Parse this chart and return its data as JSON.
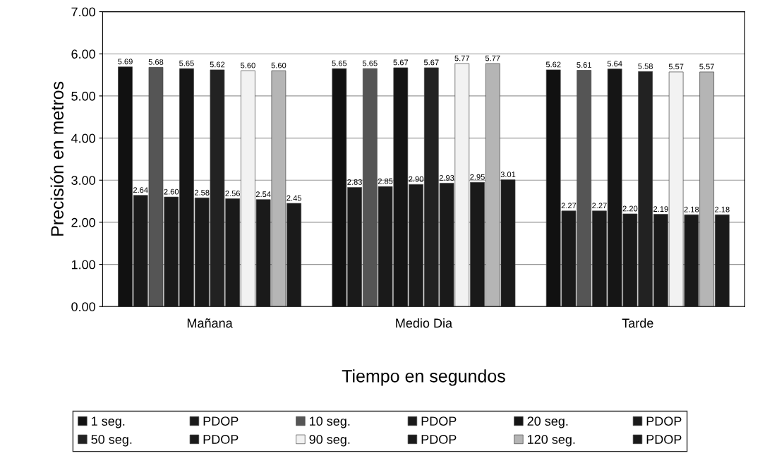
{
  "chart_data": {
    "type": "bar",
    "xlabel": "Tiempo en segundos",
    "ylabel": "Precisión en metros",
    "categories": [
      "Mañana",
      "Medio Dia",
      "Tarde"
    ],
    "ylim": [
      0,
      7
    ],
    "yticks": [
      {
        "value": 0,
        "label": "0.00"
      },
      {
        "value": 1,
        "label": "1.00"
      },
      {
        "value": 2,
        "label": "2.00"
      },
      {
        "value": 3,
        "label": "3.00"
      },
      {
        "value": 4,
        "label": "4.00"
      },
      {
        "value": 5,
        "label": "5.00"
      },
      {
        "value": 6,
        "label": "6.00"
      },
      {
        "value": 7,
        "label": "7.00"
      }
    ],
    "grid": "y",
    "legend": "bottom",
    "series": [
      {
        "name": "1 seg.",
        "color": "#111111",
        "values": [
          5.69,
          5.65,
          5.62
        ],
        "value_labels": [
          "5.69",
          "5.65",
          "5.62"
        ]
      },
      {
        "name": "PDOP",
        "color": "#1a1a1a",
        "values": [
          2.64,
          2.83,
          2.27
        ],
        "value_labels": [
          "2.64",
          "2.83",
          "2.27"
        ]
      },
      {
        "name": "10 seg.",
        "color": "#555555",
        "values": [
          5.68,
          5.65,
          5.61
        ],
        "value_labels": [
          "5.68",
          "5.65",
          "5.61"
        ]
      },
      {
        "name": "PDOP",
        "color": "#1a1a1a",
        "values": [
          2.6,
          2.85,
          2.27
        ],
        "value_labels": [
          "2.60",
          "2.85",
          "2.27"
        ]
      },
      {
        "name": "20 seg.",
        "color": "#151515",
        "values": [
          5.65,
          5.67,
          5.64
        ],
        "value_labels": [
          "5.65",
          "5.67",
          "5.64"
        ]
      },
      {
        "name": "PDOP",
        "color": "#1a1a1a",
        "values": [
          2.58,
          2.9,
          2.2
        ],
        "value_labels": [
          "2.58",
          "2.90",
          "2.20"
        ]
      },
      {
        "name": "50 seg.",
        "color": "#222222",
        "values": [
          5.62,
          5.67,
          5.58
        ],
        "value_labels": [
          "5.62",
          "5.67",
          "5.58"
        ]
      },
      {
        "name": "PDOP",
        "color": "#1a1a1a",
        "values": [
          2.56,
          2.93,
          2.19
        ],
        "value_labels": [
          "2.56",
          "2.93",
          "2.19"
        ]
      },
      {
        "name": "90 seg.",
        "color": "#f2f2f2",
        "values": [
          5.6,
          5.77,
          5.57
        ],
        "value_labels": [
          "5.60",
          "5.77",
          "5.57"
        ]
      },
      {
        "name": "PDOP",
        "color": "#1a1a1a",
        "values": [
          2.54,
          2.95,
          2.18
        ],
        "value_labels": [
          "2.54",
          "2.95",
          "2.18"
        ]
      },
      {
        "name": "120 seg.",
        "color": "#b5b5b5",
        "values": [
          5.6,
          5.77,
          5.57
        ],
        "value_labels": [
          "5.60",
          "5.77",
          "5.57"
        ]
      },
      {
        "name": "PDOP",
        "color": "#1a1a1a",
        "values": [
          2.45,
          3.01,
          2.18
        ],
        "value_labels": [
          "2.45",
          "3.01",
          "2.18"
        ]
      }
    ]
  }
}
